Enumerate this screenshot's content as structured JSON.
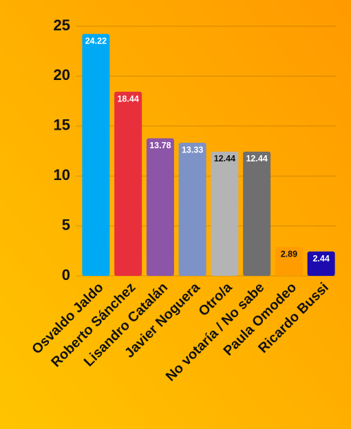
{
  "chart_data": {
    "type": "bar",
    "categories": [
      "Osvaldo Jaldo",
      "Roberto Sánchez",
      "Lisandro Catalán",
      "Javier Noguera",
      "Otro/a",
      "No votaría / No sabe",
      "Paula Omodeo",
      "Ricardo Bussi"
    ],
    "values": [
      24.22,
      18.44,
      13.78,
      13.33,
      12.44,
      12.44,
      2.89,
      2.44
    ],
    "colors": [
      "#00a9f4",
      "#e8303c",
      "#8c55a8",
      "#7d92c6",
      "#b4b4b4",
      "#6f6f6f",
      "#ff9c00",
      "#1c0cb0"
    ],
    "label_colors": [
      "#ffffff",
      "#ffffff",
      "#ffffff",
      "#ffffff",
      "#111111",
      "#ffffff",
      "#111111",
      "#ffffff"
    ],
    "ylim": [
      0,
      25
    ],
    "yticks": [
      0,
      5,
      10,
      15,
      20,
      25
    ],
    "grid": true
  }
}
